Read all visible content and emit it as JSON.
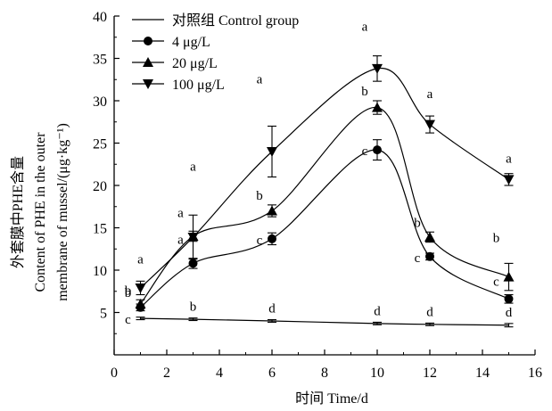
{
  "chart_data": {
    "type": "line",
    "title": "",
    "xlabel": "时间 Time/d",
    "ylabel_lines": [
      "外套膜中PHE含量",
      "Content of PHE in the outer",
      "membrane of mussel/(μg·kg⁻¹)"
    ],
    "xlim": [
      0,
      16
    ],
    "ylim": [
      0,
      40
    ],
    "x_ticks": [
      0,
      2,
      4,
      6,
      8,
      10,
      12,
      14,
      16
    ],
    "y_ticks": [
      5,
      10,
      15,
      20,
      25,
      30,
      35,
      40
    ],
    "grid": false,
    "legend_position": "top-left",
    "x": [
      1,
      3,
      6,
      10,
      12,
      15
    ],
    "series": [
      {
        "name": "对照组 Control group",
        "marker": "none",
        "values": [
          4.3,
          4.2,
          4.0,
          3.7,
          3.6,
          3.5
        ],
        "errors": [
          0.15,
          0.15,
          0.15,
          0.15,
          0.15,
          0.2
        ],
        "labels": [
          "c",
          "b",
          "d",
          "d",
          "d",
          "d"
        ]
      },
      {
        "name": "4 μg/L",
        "marker": "circle",
        "values": [
          5.6,
          10.8,
          13.7,
          24.2,
          11.6,
          6.6
        ],
        "errors": [
          0.4,
          0.6,
          0.7,
          1.2,
          0.4,
          0.5
        ],
        "labels": [
          "b",
          "a",
          "c",
          "c",
          "c",
          "c"
        ]
      },
      {
        "name": "20 μg/L",
        "marker": "triangle-up",
        "values": [
          6.0,
          14.0,
          17.0,
          29.2,
          13.9,
          9.2
        ],
        "errors": [
          0.5,
          0.6,
          0.7,
          0.8,
          0.6,
          1.6
        ],
        "labels": [
          "b",
          "a",
          "b",
          "b",
          "b",
          "b"
        ]
      },
      {
        "name": "100 μg/L",
        "marker": "triangle-down",
        "values": [
          7.9,
          13.9,
          24.0,
          33.8,
          27.2,
          20.7
        ],
        "errors": [
          0.8,
          2.6,
          3.0,
          1.5,
          1.0,
          0.7
        ],
        "labels": [
          "a",
          "a",
          "a",
          "a",
          "a",
          "a"
        ]
      }
    ]
  }
}
